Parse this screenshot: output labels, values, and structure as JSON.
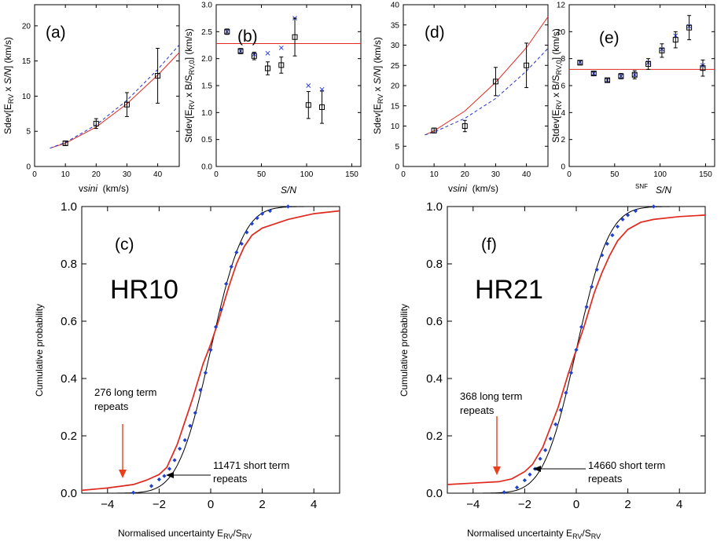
{
  "chart_data": [
    {
      "id": "a",
      "type": "scatter",
      "panel_label": "(a)",
      "xlabel": "vsini  (km/s)",
      "ylabel": "Sdev[E_RV x S/N] (km/s)",
      "xlim": [
        0,
        47
      ],
      "ylim": [
        0,
        23
      ],
      "xticks": [
        0,
        10,
        20,
        30,
        40
      ],
      "yticks": [
        0,
        5,
        10,
        15,
        20
      ],
      "points": [
        {
          "x": 10,
          "y": 3.3,
          "err": 0.3
        },
        {
          "x": 20,
          "y": 6.1,
          "err": 0.7
        },
        {
          "x": 30,
          "y": 8.8,
          "err": 1.7
        },
        {
          "x": 40,
          "y": 12.9,
          "err": 3.9
        }
      ],
      "curves": [
        {
          "name": "red fit",
          "color": "#e0281e",
          "style": "solid",
          "x": [
            5,
            10,
            20,
            30,
            40,
            47
          ],
          "y": [
            2.6,
            3.3,
            5.6,
            8.9,
            13.0,
            16.2
          ]
        },
        {
          "name": "blue fit",
          "color": "#2233cc",
          "style": "dashed",
          "x": [
            5,
            10,
            20,
            30,
            40,
            47
          ],
          "y": [
            2.6,
            3.4,
            5.9,
            9.4,
            13.8,
            17.3
          ]
        }
      ]
    },
    {
      "id": "b",
      "type": "scatter",
      "panel_label": "(b)",
      "xlabel": "S/N",
      "ylabel": "Stdev[E_RV x B/S_RV,0] (km/s)",
      "xlim": [
        0,
        160
      ],
      "ylim": [
        0,
        3
      ],
      "xticks": [
        0,
        50,
        100,
        150
      ],
      "yticks": [
        0.0,
        0.5,
        1.0,
        1.5,
        2.0,
        2.5,
        3.0
      ],
      "hline": {
        "y": 2.28,
        "color": "#e0281e"
      },
      "points": [
        {
          "x": 12,
          "y": 2.5,
          "err": 0.05
        },
        {
          "x": 27,
          "y": 2.14,
          "err": 0.05
        },
        {
          "x": 42,
          "y": 2.05,
          "err": 0.07
        },
        {
          "x": 57,
          "y": 1.82,
          "err": 0.12
        },
        {
          "x": 72,
          "y": 1.88,
          "err": 0.15
        },
        {
          "x": 87,
          "y": 2.4,
          "err": 0.35
        },
        {
          "x": 102,
          "y": 1.14,
          "err": 0.25
        },
        {
          "x": 117,
          "y": 1.1,
          "err": 0.3
        }
      ],
      "crosses": [
        {
          "x": 12,
          "y": 2.5
        },
        {
          "x": 27,
          "y": 2.14
        },
        {
          "x": 42,
          "y": 2.08
        },
        {
          "x": 57,
          "y": 2.1
        },
        {
          "x": 72,
          "y": 2.2
        },
        {
          "x": 87,
          "y": 2.75
        },
        {
          "x": 102,
          "y": 1.5
        },
        {
          "x": 117,
          "y": 1.43
        }
      ]
    },
    {
      "id": "c",
      "type": "line",
      "panel_label": "(c)",
      "dataset": "HR10",
      "xlabel": "Normalised uncertainty E_RV/S_RV",
      "ylabel": "Cumulative probability",
      "xlim": [
        -5,
        5
      ],
      "ylim": [
        0,
        1
      ],
      "xticks": [
        -4,
        -2,
        0,
        2,
        4
      ],
      "yticks": [
        0.0,
        0.2,
        0.4,
        0.6,
        0.8,
        1.0
      ],
      "series": [
        {
          "name": "Gaussian",
          "color": "#000000",
          "kind": "normal_cdf",
          "sigma": 1
        },
        {
          "name": "long term repeats",
          "color": "#e0281e",
          "x": [
            -5,
            -4,
            -3,
            -2.5,
            -2,
            -1.7,
            -1.5,
            -1.3,
            -1,
            -0.7,
            -0.5,
            -0.3,
            0,
            0.3,
            0.5,
            0.7,
            1,
            1.3,
            1.6,
            2,
            2.5,
            3,
            4,
            5
          ],
          "y": [
            0.01,
            0.018,
            0.03,
            0.045,
            0.065,
            0.09,
            0.13,
            0.17,
            0.25,
            0.33,
            0.39,
            0.45,
            0.52,
            0.6,
            0.66,
            0.72,
            0.8,
            0.86,
            0.9,
            0.925,
            0.94,
            0.955,
            0.975,
            0.985
          ]
        },
        {
          "name": "short term repeats",
          "color": "#1f3fcf",
          "kind": "points",
          "x": [
            -3.0,
            -2.3,
            -2.0,
            -1.8,
            -1.6,
            -1.4,
            -1.2,
            -1.0,
            -0.8,
            -0.6,
            -0.4,
            -0.2,
            0.0,
            0.2,
            0.4,
            0.6,
            0.8,
            1.0,
            1.2,
            1.4,
            1.6,
            1.8,
            2.0,
            2.3,
            3.0
          ],
          "y": [
            0.002,
            0.025,
            0.048,
            0.06,
            0.085,
            0.115,
            0.155,
            0.185,
            0.235,
            0.28,
            0.36,
            0.42,
            0.5,
            0.58,
            0.64,
            0.73,
            0.79,
            0.84,
            0.87,
            0.91,
            0.94,
            0.96,
            0.975,
            0.985,
            1.0
          ]
        }
      ],
      "annotations": [
        "276 long term repeats",
        "11471 short term repeats"
      ]
    },
    {
      "id": "d",
      "type": "scatter",
      "panel_label": "(d)",
      "xlabel": "vsini  (km/s)",
      "ylabel": "Sdev[E_RV x S/N] (km/s)",
      "xlim": [
        0,
        47
      ],
      "ylim": [
        0,
        40
      ],
      "xticks": [
        0,
        10,
        20,
        30,
        40
      ],
      "yticks": [
        0,
        5,
        10,
        15,
        20,
        25,
        30,
        35,
        40
      ],
      "points": [
        {
          "x": 10,
          "y": 8.9,
          "err": 0.6
        },
        {
          "x": 20,
          "y": 10.0,
          "err": 1.4
        },
        {
          "x": 30,
          "y": 21.0,
          "err": 3.5
        },
        {
          "x": 40,
          "y": 25.0,
          "err": 5.5
        }
      ],
      "curves": [
        {
          "name": "red fit",
          "color": "#e0281e",
          "style": "solid",
          "x": [
            7,
            10,
            20,
            30,
            40,
            47
          ],
          "y": [
            7.8,
            8.8,
            13.7,
            20.8,
            29.4,
            37.0
          ]
        },
        {
          "name": "blue fit",
          "color": "#2233cc",
          "style": "dashed",
          "x": [
            7,
            10,
            20,
            30,
            40,
            47
          ],
          "y": [
            7.8,
            8.5,
            11.9,
            16.8,
            23.6,
            29.2
          ]
        }
      ]
    },
    {
      "id": "e",
      "type": "scatter",
      "panel_label": "(e)",
      "xlabel": "S/N",
      "xlabel_extra": "SNF",
      "ylabel": "Stdev[E_RV x B/S_RV,0] (km/s)",
      "xlim": [
        0,
        160
      ],
      "ylim": [
        0,
        12
      ],
      "xticks": [
        0,
        50,
        100,
        150
      ],
      "yticks": [
        0,
        2,
        4,
        6,
        8,
        10,
        12
      ],
      "hline": {
        "y": 7.2,
        "color": "#e0281e"
      },
      "points": [
        {
          "x": 12,
          "y": 7.7,
          "err": 0.15
        },
        {
          "x": 27,
          "y": 6.9,
          "err": 0.15
        },
        {
          "x": 42,
          "y": 6.4,
          "err": 0.15
        },
        {
          "x": 57,
          "y": 6.7,
          "err": 0.2
        },
        {
          "x": 72,
          "y": 6.8,
          "err": 0.3
        },
        {
          "x": 87,
          "y": 7.6,
          "err": 0.4
        },
        {
          "x": 102,
          "y": 8.6,
          "err": 0.5
        },
        {
          "x": 117,
          "y": 9.4,
          "err": 0.6
        },
        {
          "x": 132,
          "y": 10.3,
          "err": 0.9
        },
        {
          "x": 147,
          "y": 7.3,
          "err": 0.6
        }
      ],
      "crosses": [
        {
          "x": 12,
          "y": 7.75
        },
        {
          "x": 27,
          "y": 6.9
        },
        {
          "x": 42,
          "y": 6.4
        },
        {
          "x": 57,
          "y": 6.7
        },
        {
          "x": 72,
          "y": 6.8
        },
        {
          "x": 87,
          "y": 7.7
        },
        {
          "x": 102,
          "y": 8.7
        },
        {
          "x": 117,
          "y": 9.7
        },
        {
          "x": 132,
          "y": 10.4
        },
        {
          "x": 147,
          "y": 7.5
        }
      ]
    },
    {
      "id": "f",
      "type": "line",
      "panel_label": "(f)",
      "dataset": "HR21",
      "xlabel": "Normalised uncertainty E_RV/S_RV",
      "ylabel": "Cumulative probability",
      "xlim": [
        -5,
        5
      ],
      "ylim": [
        0,
        1
      ],
      "xticks": [
        -4,
        -2,
        0,
        2,
        4
      ],
      "yticks": [
        0.0,
        0.2,
        0.4,
        0.6,
        0.8,
        1.0
      ],
      "series": [
        {
          "name": "Gaussian",
          "color": "#000000",
          "kind": "normal_cdf",
          "sigma": 1
        },
        {
          "name": "long term repeats",
          "color": "#e0281e",
          "x": [
            -5,
            -4,
            -3,
            -2.5,
            -2,
            -1.7,
            -1.5,
            -1.3,
            -1,
            -0.7,
            -0.5,
            -0.3,
            0,
            0.3,
            0.5,
            0.7,
            1,
            1.3,
            1.6,
            2,
            2.5,
            3,
            4,
            5
          ],
          "y": [
            0.03,
            0.035,
            0.04,
            0.05,
            0.075,
            0.1,
            0.13,
            0.16,
            0.23,
            0.3,
            0.36,
            0.42,
            0.5,
            0.58,
            0.64,
            0.7,
            0.77,
            0.83,
            0.88,
            0.92,
            0.945,
            0.955,
            0.965,
            0.97
          ]
        },
        {
          "name": "short term repeats",
          "color": "#1f3fcf",
          "kind": "points",
          "x": [
            -2.8,
            -2.3,
            -2.0,
            -1.8,
            -1.6,
            -1.4,
            -1.2,
            -1.0,
            -0.8,
            -0.6,
            -0.4,
            -0.2,
            0.0,
            0.2,
            0.4,
            0.6,
            0.8,
            1.0,
            1.2,
            1.4,
            1.6,
            1.8,
            2.0,
            2.3,
            3.0
          ],
          "y": [
            0.003,
            0.02,
            0.045,
            0.065,
            0.085,
            0.12,
            0.15,
            0.19,
            0.24,
            0.29,
            0.35,
            0.42,
            0.5,
            0.58,
            0.65,
            0.72,
            0.78,
            0.83,
            0.87,
            0.9,
            0.93,
            0.955,
            0.97,
            0.985,
            1.0
          ]
        }
      ],
      "annotations": [
        "368 long term repeats",
        "14660 short term repeats"
      ]
    }
  ],
  "labels": {
    "a": "(a)",
    "b": "(b)",
    "c": "(c)",
    "d": "(d)",
    "e": "(e)",
    "f": "(f)",
    "hr10": "HR10",
    "hr21": "HR21",
    "ann_c_long_1": "276 long term",
    "ann_c_long_2": "repeats",
    "ann_c_short_1": "11471 short term",
    "ann_c_short_2": "repeats",
    "ann_f_long_1": "368 long term",
    "ann_f_long_2": "repeats",
    "ann_f_short_1": "14660 short term",
    "ann_f_short_2": "repeats",
    "ylabel_cdf": "Cumulative probability",
    "xlabel_cdf_main": "Normalised uncertainty E",
    "xlabel_cdf_sub1": "RV",
    "xlabel_cdf_mid": "/S",
    "xlabel_cdf_sub2": "RV",
    "xlabel_vsini_v": "v",
    "xlabel_vsini_s": "sini",
    "xlabel_vsini_rest": "  (km/s)",
    "xlabel_sn": "S/N",
    "snf": "SNF",
    "ylabel_sdev_1": "Sdev[E",
    "ylabel_sdev_sub": "RV",
    "ylabel_sdev_2": " x ",
    "ylabel_sdev_sn": "S/N",
    "ylabel_sdev_3": "] (km/s)",
    "ylabel_stdev_1": "Stdev[E",
    "ylabel_stdev_sub1": "RV",
    "ylabel_stdev_2": " x B/S",
    "ylabel_stdev_sub2": "RV,0",
    "ylabel_stdev_3": "] (km/s)"
  }
}
